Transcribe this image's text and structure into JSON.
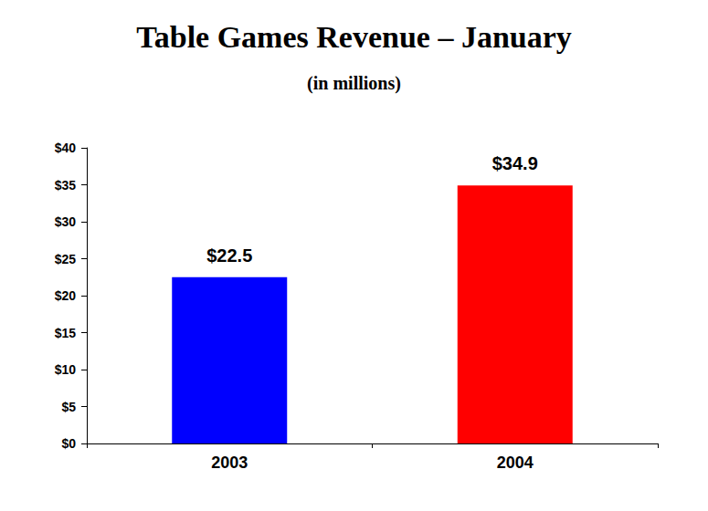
{
  "chart_data": {
    "type": "bar",
    "title": "Table Games Revenue – January",
    "subtitle": "(in millions)",
    "categories": [
      "2003",
      "2004"
    ],
    "values": [
      22.5,
      34.9
    ],
    "value_labels": [
      "$22.5",
      "$34.9"
    ],
    "colors": [
      "#0000ff",
      "#ff0000"
    ],
    "ylim": [
      0,
      40
    ],
    "yticks": [
      {
        "value": 0,
        "label": "$0"
      },
      {
        "value": 5,
        "label": "$5"
      },
      {
        "value": 10,
        "label": "$10"
      },
      {
        "value": 15,
        "label": "$15"
      },
      {
        "value": 20,
        "label": "$20"
      },
      {
        "value": 25,
        "label": "$25"
      },
      {
        "value": 30,
        "label": "$30"
      },
      {
        "value": 35,
        "label": "$35"
      },
      {
        "value": 40,
        "label": "$40"
      }
    ],
    "grid": false,
    "data_labels": true
  }
}
